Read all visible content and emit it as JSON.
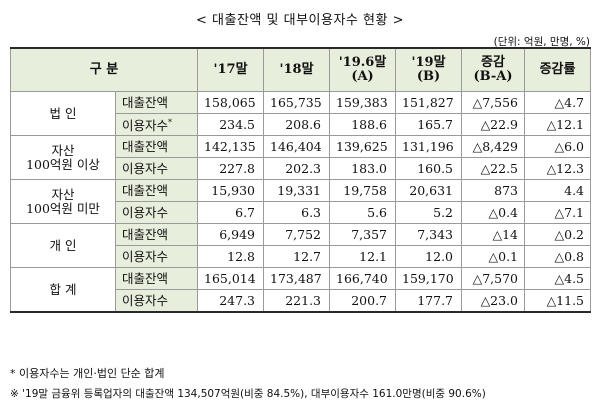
{
  "title": "< 대출잔액 및 대부이용자수 현황 >",
  "unit": "(단위: 억원, 만명, %)",
  "header": {
    "gubun": "구  분",
    "col17": "'17말",
    "col18": "'18말",
    "col196_line1": "'19.6말",
    "col196_line2": "(A)",
    "col19_line1": "'19말",
    "col19_line2": "(B)",
    "delta_line1": "증감",
    "delta_line2": "(B-A)",
    "rate": "증감률"
  },
  "groups": [
    {
      "label": "법 인",
      "rows": [
        {
          "metric": "대출잔액",
          "v17": "158,065",
          "v18": "165,735",
          "v196": "159,383",
          "v19": "151,827",
          "delta": "△7,556",
          "rate": "△4.7"
        },
        {
          "metric": "이용자수",
          "sup": "*",
          "v17": "234.5",
          "v18": "208.6",
          "v196": "188.6",
          "v19": "165.7",
          "delta": "△22.9",
          "rate": "△12.1"
        }
      ]
    },
    {
      "label": "자산\n100억원 이상",
      "rows": [
        {
          "metric": "대출잔액",
          "v17": "142,135",
          "v18": "146,404",
          "v196": "139,625",
          "v19": "131,196",
          "delta": "△8,429",
          "rate": "△6.0"
        },
        {
          "metric": "이용자수",
          "v17": "227.8",
          "v18": "202.3",
          "v196": "183.0",
          "v19": "160.5",
          "delta": "△22.5",
          "rate": "△12.3"
        }
      ]
    },
    {
      "label": "자산\n100억원 미만",
      "rows": [
        {
          "metric": "대출잔액",
          "v17": "15,930",
          "v18": "19,331",
          "v196": "19,758",
          "v19": "20,631",
          "delta": "873",
          "rate": "4.4"
        },
        {
          "metric": "이용자수",
          "v17": "6.7",
          "v18": "6.3",
          "v196": "5.6",
          "v19": "5.2",
          "delta": "△0.4",
          "rate": "△7.1"
        }
      ]
    },
    {
      "label": "개 인",
      "rows": [
        {
          "metric": "대출잔액",
          "v17": "6,949",
          "v18": "7,752",
          "v196": "7,357",
          "v19": "7,343",
          "delta": "△14",
          "rate": "△0.2"
        },
        {
          "metric": "이용자수",
          "v17": "12.8",
          "v18": "12.7",
          "v196": "12.1",
          "v19": "12.0",
          "delta": "△0.1",
          "rate": "△0.8"
        }
      ]
    },
    {
      "label": "합 계",
      "rows": [
        {
          "metric": "대출잔액",
          "v17": "165,014",
          "v18": "173,487",
          "v196": "166,740",
          "v19": "159,170",
          "delta": "△7,570",
          "rate": "△4.5"
        },
        {
          "metric": "이용자수",
          "v17": "247.3",
          "v18": "221.3",
          "v196": "200.7",
          "v19": "177.7",
          "delta": "△23.0",
          "rate": "△11.5"
        }
      ]
    }
  ],
  "footnotes": {
    "note1": "* 이용자수는 개인·법인 단순 합계",
    "note2": "※ '19말 금융위 등록업자의 대출잔액 134,507억원(비중 84.5%), 대부이용자수 161.0만명(비중 90.6%)"
  }
}
